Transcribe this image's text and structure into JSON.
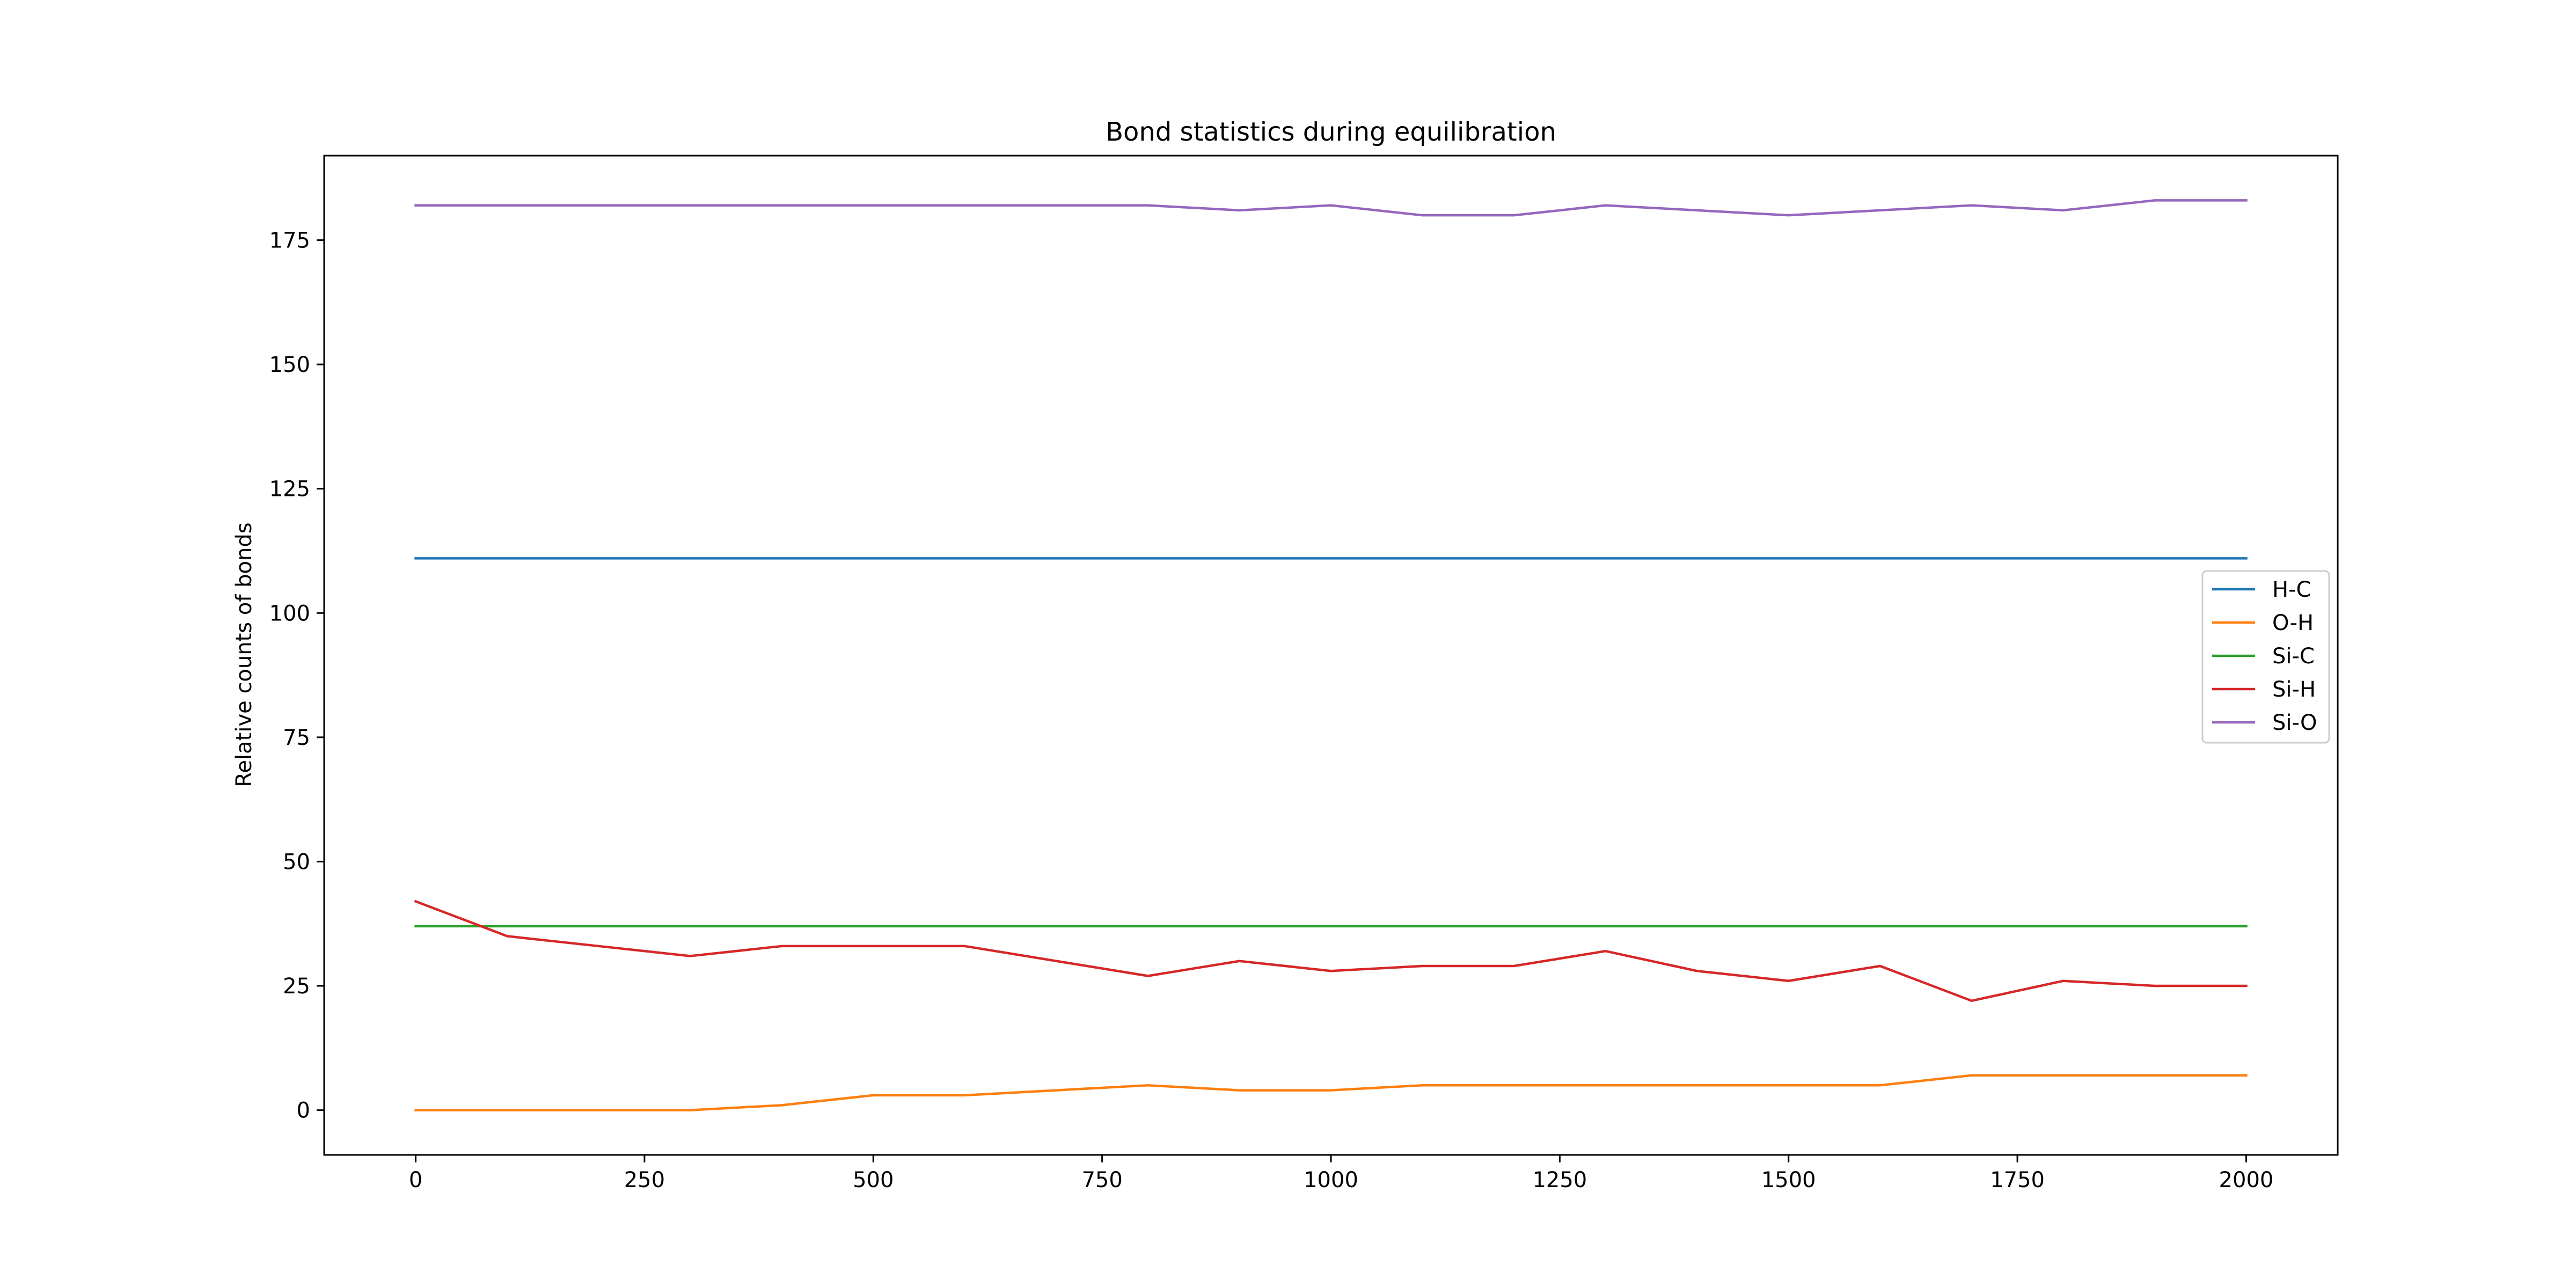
{
  "chart_data": {
    "type": "line",
    "title": "Bond statistics during equilibration",
    "xlabel": "",
    "ylabel": "Relative counts of bonds",
    "xlim": [
      -100,
      2100
    ],
    "ylim": [
      -9,
      192
    ],
    "xticks": [
      0,
      250,
      500,
      750,
      1000,
      1250,
      1500,
      1750,
      2000
    ],
    "yticks": [
      0,
      25,
      50,
      75,
      100,
      125,
      150,
      175
    ],
    "grid": false,
    "legend_position": "center-right",
    "x": [
      0,
      100,
      200,
      300,
      400,
      500,
      600,
      700,
      800,
      900,
      1000,
      1100,
      1200,
      1300,
      1400,
      1500,
      1600,
      1700,
      1800,
      1900,
      2000
    ],
    "series": [
      {
        "name": "H-C",
        "color": "#1f77b4",
        "values": [
          111,
          111,
          111,
          111,
          111,
          111,
          111,
          111,
          111,
          111,
          111,
          111,
          111,
          111,
          111,
          111,
          111,
          111,
          111,
          111,
          111
        ]
      },
      {
        "name": "O-H",
        "color": "#ff7f0e",
        "values": [
          0,
          0,
          0,
          0,
          1,
          3,
          3,
          4,
          5,
          4,
          4,
          5,
          5,
          5,
          5,
          5,
          5,
          7,
          7,
          7,
          7
        ]
      },
      {
        "name": "Si-C",
        "color": "#2ca02c",
        "values": [
          37,
          37,
          37,
          37,
          37,
          37,
          37,
          37,
          37,
          37,
          37,
          37,
          37,
          37,
          37,
          37,
          37,
          37,
          37,
          37,
          37
        ]
      },
      {
        "name": "Si-H",
        "color": "#d62728",
        "values": [
          42,
          35,
          33,
          31,
          33,
          33,
          33,
          30,
          27,
          30,
          28,
          29,
          29,
          32,
          28,
          26,
          29,
          22,
          26,
          25,
          25
        ]
      },
      {
        "name": "Si-O",
        "color": "#9467bd",
        "values": [
          182,
          182,
          182,
          182,
          182,
          182,
          182,
          182,
          182,
          181,
          182,
          180,
          180,
          182,
          181,
          180,
          181,
          182,
          181,
          183,
          183
        ]
      }
    ]
  }
}
